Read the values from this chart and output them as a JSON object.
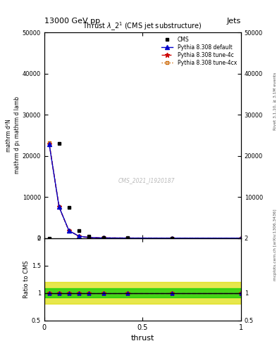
{
  "title_top": "13000 GeV pp",
  "title_right": "Jets",
  "plot_title": "Thrust $\\lambda\\_2^1$ (CMS jet substructure)",
  "xlabel": "thrust",
  "ylabel_ratio": "Ratio to CMS",
  "right_label_top": "Rivet 3.1.10, ≥ 3.1M events",
  "right_label_bottom": "mcplots.cern.ch [arXiv:1306.3436]",
  "watermark": "CMS_2021_I1920187",
  "cms_x": [
    0.025,
    0.075,
    0.125,
    0.175,
    0.225,
    0.3,
    0.425,
    0.65
  ],
  "cms_y": [
    0,
    23000,
    7500,
    1800,
    500,
    150,
    30,
    5
  ],
  "py_x": [
    0.025,
    0.075,
    0.125,
    0.175,
    0.225,
    0.3,
    0.425,
    0.65,
    1.0
  ],
  "py_default_y": [
    22800,
    7600,
    1820,
    490,
    155,
    48,
    12,
    3,
    0
  ],
  "py_4c_y": [
    22900,
    7550,
    1810,
    495,
    152,
    46,
    11,
    3,
    0
  ],
  "py_4cx_y": [
    23100,
    7580,
    1830,
    500,
    158,
    49,
    13,
    3,
    0
  ],
  "ylim_main": [
    0,
    50000
  ],
  "yticks_main": [
    0,
    10000,
    20000,
    30000,
    40000,
    50000
  ],
  "xlim": [
    0,
    1
  ],
  "xticks": [
    0,
    0.5,
    1.0
  ],
  "ylim_ratio": [
    0.5,
    2.0
  ],
  "yticks_ratio": [
    0.5,
    1.0,
    1.5,
    2.0
  ],
  "color_cms": "#000000",
  "color_default": "#0000cc",
  "color_4c": "#cc0000",
  "color_4cx": "#cc6600",
  "green_band": [
    0.92,
    1.08
  ],
  "yellow_band": [
    0.8,
    1.2
  ]
}
